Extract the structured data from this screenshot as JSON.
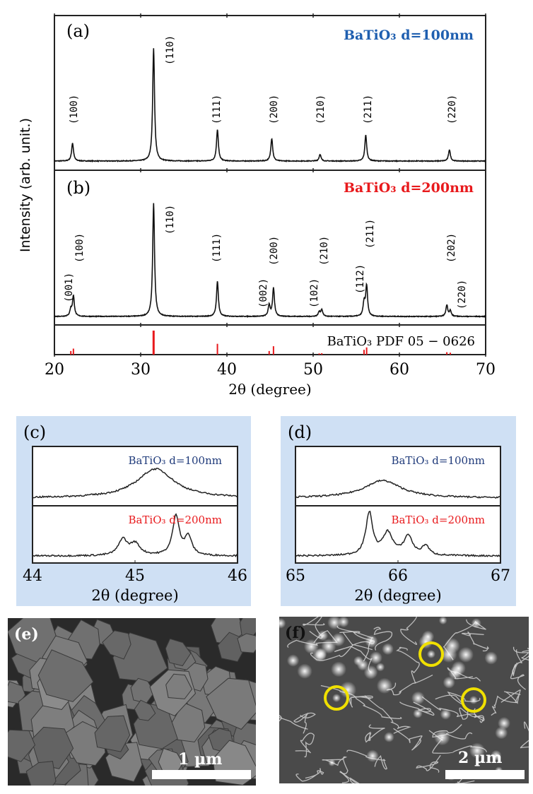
{
  "chart_data": [
    {
      "type": "line",
      "panel": "(a)",
      "legend": "BaTiO₃ d=100nm",
      "legend_color": "#1f5fb0",
      "xlim": [
        20,
        70
      ],
      "xticks": [
        "20",
        "30",
        "40",
        "50",
        "60",
        "70"
      ],
      "xlabel": "2θ (degree)",
      "ylabel": "Intensity (arb. unit.)",
      "peaks": [
        {
          "label": "(100)",
          "x": 22.1,
          "y": 0.16
        },
        {
          "label": "(110)",
          "x": 31.5,
          "y": 1.0
        },
        {
          "label": "(111)",
          "x": 38.9,
          "y": 0.28
        },
        {
          "label": "(200)",
          "x": 45.2,
          "y": 0.2
        },
        {
          "label": "(210)",
          "x": 50.8,
          "y": 0.06
        },
        {
          "label": "(211)",
          "x": 56.1,
          "y": 0.23
        },
        {
          "label": "(220)",
          "x": 65.8,
          "y": 0.1
        }
      ]
    },
    {
      "type": "line",
      "panel": "(b)",
      "legend": "BaTiO₃ d=200nm",
      "legend_color": "#e8191c",
      "xlim": [
        20,
        70
      ],
      "peaks": [
        {
          "label": "(001)",
          "x": 21.9,
          "y": 0.06
        },
        {
          "label": "(100)",
          "x": 22.2,
          "y": 0.18
        },
        {
          "label": "(110)",
          "x": 31.5,
          "y": 1.0
        },
        {
          "label": "(111)",
          "x": 38.9,
          "y": 0.31
        },
        {
          "label": "(002)",
          "x": 44.9,
          "y": 0.1
        },
        {
          "label": "(200)",
          "x": 45.4,
          "y": 0.25
        },
        {
          "label": "(102)",
          "x": 50.7,
          "y": 0.04
        },
        {
          "label": "(210)",
          "x": 51.0,
          "y": 0.06
        },
        {
          "label": "(112)",
          "x": 55.9,
          "y": 0.12
        },
        {
          "label": "(211)",
          "x": 56.2,
          "y": 0.27
        },
        {
          "label": "(202)",
          "x": 65.5,
          "y": 0.1
        },
        {
          "label": "(220)",
          "x": 65.9,
          "y": 0.05
        }
      ]
    },
    {
      "type": "bar",
      "legend": "BaTiO₃  PDF 05 − 0626",
      "color": "#e8191c",
      "x": [
        21.9,
        22.2,
        31.5,
        38.9,
        44.9,
        45.4,
        50.7,
        51.0,
        55.9,
        56.2,
        65.5,
        65.9
      ],
      "values": [
        0.15,
        0.25,
        1.0,
        0.45,
        0.15,
        0.35,
        0.05,
        0.06,
        0.2,
        0.3,
        0.1,
        0.08
      ]
    },
    {
      "type": "line",
      "panel": "(c)",
      "xlim": [
        44,
        46
      ],
      "xticks": [
        "44",
        "45",
        "46"
      ],
      "xlabel": "2θ (degree)",
      "series": [
        {
          "name": "BaTiO₃ d=100nm",
          "color": "#1f3a7a",
          "peaks": [
            {
              "x": 45.2,
              "y": 0.55,
              "w": 0.22
            }
          ]
        },
        {
          "name": "BaTiO₃ d=200nm",
          "color": "#e8191c",
          "peaks": [
            {
              "x": 44.88,
              "y": 0.3,
              "w": 0.05
            },
            {
              "x": 45.0,
              "y": 0.22,
              "w": 0.06
            },
            {
              "x": 45.4,
              "y": 0.75,
              "w": 0.04
            },
            {
              "x": 45.52,
              "y": 0.35,
              "w": 0.04
            }
          ]
        }
      ]
    },
    {
      "type": "line",
      "panel": "(d)",
      "xlim": [
        65,
        67
      ],
      "xticks": [
        "65",
        "66",
        "67"
      ],
      "xlabel": "2θ (degree)",
      "series": [
        {
          "name": "BaTiO₃ d=100nm",
          "color": "#1f3a7a",
          "peaks": [
            {
              "x": 65.85,
              "y": 0.33,
              "w": 0.22
            }
          ]
        },
        {
          "name": "BaTiO₃ d=200nm",
          "color": "#e8191c",
          "peaks": [
            {
              "x": 65.72,
              "y": 0.8,
              "w": 0.04
            },
            {
              "x": 65.9,
              "y": 0.42,
              "w": 0.06
            },
            {
              "x": 66.1,
              "y": 0.36,
              "w": 0.05
            },
            {
              "x": 66.27,
              "y": 0.18,
              "w": 0.04
            }
          ]
        }
      ]
    }
  ],
  "images": {
    "e": {
      "label": "(e)",
      "scale_bar": "1 µm"
    },
    "f": {
      "label": "(f)",
      "scale_bar": "2 µm",
      "marker_color": "#f0e000"
    }
  }
}
